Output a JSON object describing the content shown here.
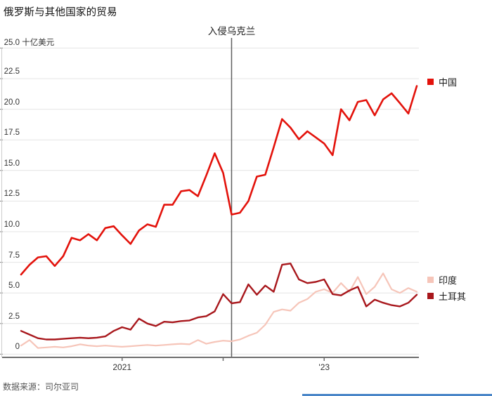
{
  "page": {
    "title": "俄罗斯与其他国家的贸易",
    "source": "数据来源：司尔亚司"
  },
  "chart_data": {
    "type": "line",
    "title": "俄罗斯与其他国家的贸易",
    "unit_label": "十亿美元",
    "frequency": "monthly",
    "x_start": "2020-01",
    "x_end": "2023-12",
    "ylim": [
      0,
      25
    ],
    "grid": true,
    "legend_position": "right",
    "yticks": [
      {
        "value": 25,
        "label": "25.0"
      },
      {
        "value": 22.5,
        "label": "22.5"
      },
      {
        "value": 20,
        "label": "20.0"
      },
      {
        "value": 17.5,
        "label": "17.5"
      },
      {
        "value": 15,
        "label": "15.0"
      },
      {
        "value": 12.5,
        "label": "12.5"
      },
      {
        "value": 10,
        "label": "10.0"
      },
      {
        "value": 7.5,
        "label": "7.5"
      },
      {
        "value": 5,
        "label": "5.0"
      },
      {
        "value": 2.5,
        "label": "2.5"
      },
      {
        "value": 0,
        "label": "0"
      }
    ],
    "xticks": [
      {
        "month_index": 12,
        "label": "2021"
      },
      {
        "month_index": 24,
        "label": ""
      },
      {
        "month_index": 36,
        "label": "'23"
      }
    ],
    "annotation": {
      "label": "入侵乌克兰",
      "month_index": 25
    },
    "series": [
      {
        "id": "china",
        "name": "中国",
        "color": "#e3120b",
        "line_width": 2.6,
        "values": [
          6.5,
          7.3,
          7.9,
          8.0,
          7.2,
          8.0,
          9.5,
          9.3,
          9.8,
          9.3,
          10.3,
          10.45,
          9.7,
          9.0,
          10.1,
          10.6,
          10.4,
          12.2,
          12.2,
          13.3,
          13.4,
          12.9,
          14.6,
          16.4,
          14.8,
          11.4,
          11.55,
          12.5,
          14.5,
          14.65,
          16.9,
          19.2,
          18.5,
          17.55,
          18.2,
          17.7,
          17.2,
          16.25,
          20.0,
          19.1,
          20.6,
          20.75,
          19.5,
          20.8,
          21.3,
          20.5,
          19.65,
          21.9
        ]
      },
      {
        "id": "india",
        "name": "印度",
        "color": "#f6c5b9",
        "line_width": 2.2,
        "values": [
          0.7,
          1.15,
          0.5,
          0.55,
          0.6,
          0.55,
          0.65,
          0.8,
          0.7,
          0.65,
          0.7,
          0.65,
          0.6,
          0.65,
          0.7,
          0.75,
          0.7,
          0.75,
          0.8,
          0.85,
          0.8,
          1.15,
          0.85,
          1.0,
          1.1,
          1.05,
          1.2,
          1.5,
          1.75,
          2.4,
          3.45,
          3.65,
          3.55,
          4.2,
          4.5,
          5.1,
          5.3,
          5.0,
          5.8,
          5.1,
          6.3,
          4.9,
          5.5,
          6.6,
          5.3,
          5.0,
          5.4,
          5.1
        ]
      },
      {
        "id": "turkey",
        "name": "土耳其",
        "color": "#a8171c",
        "line_width": 2.4,
        "values": [
          1.9,
          1.6,
          1.3,
          1.2,
          1.2,
          1.25,
          1.3,
          1.35,
          1.3,
          1.35,
          1.45,
          1.9,
          2.2,
          2.0,
          2.9,
          2.5,
          2.3,
          2.65,
          2.6,
          2.7,
          2.75,
          3.0,
          3.1,
          3.5,
          4.9,
          4.15,
          4.25,
          5.7,
          4.85,
          5.6,
          5.1,
          7.3,
          7.4,
          6.1,
          5.8,
          5.9,
          6.1,
          4.9,
          4.8,
          5.2,
          5.5,
          3.9,
          4.45,
          4.2,
          4.0,
          3.9,
          4.2,
          4.85
        ]
      }
    ],
    "colors": {
      "grid": "#e4e4e4",
      "axis": "#6e6e6e",
      "event_line": "#5f5f5f"
    }
  }
}
